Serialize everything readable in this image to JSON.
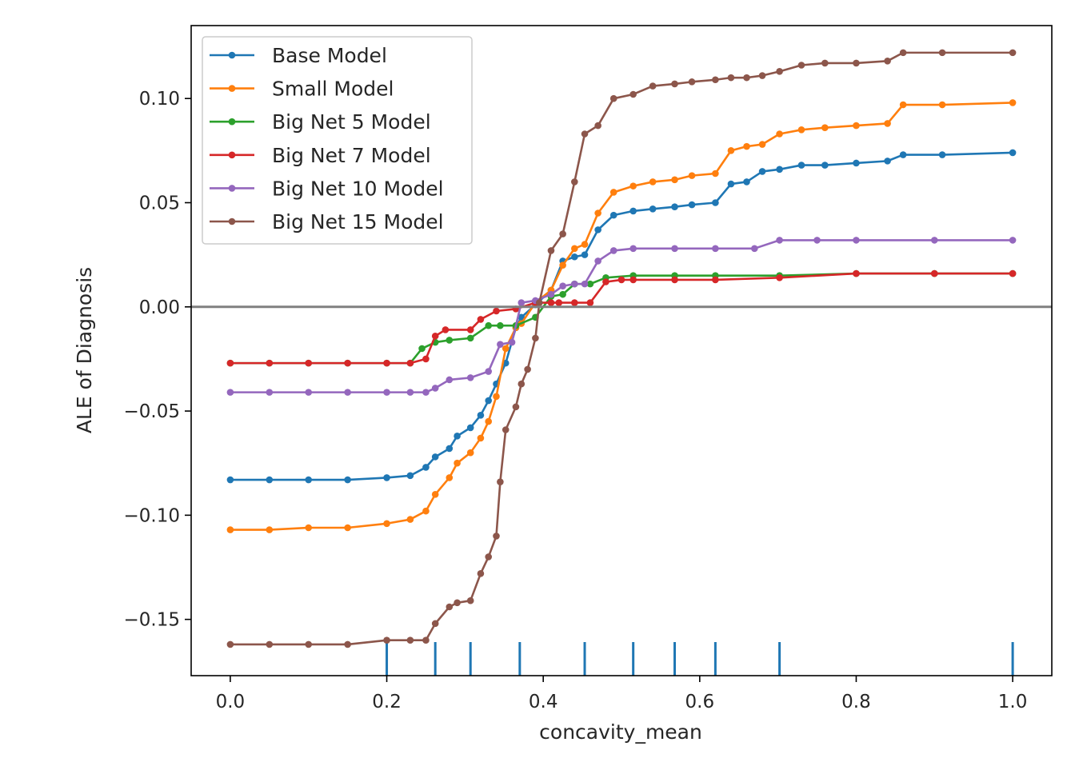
{
  "chart_data": {
    "type": "line",
    "title": "",
    "xlabel": "concavity_mean",
    "ylabel": "ALE of Diagnosis",
    "xlim": [
      -0.05,
      1.05
    ],
    "ylim": [
      -0.177,
      0.135
    ],
    "xticks": [
      0.0,
      0.2,
      0.4,
      0.6,
      0.8,
      1.0
    ],
    "xtick_labels": [
      "0.0",
      "0.2",
      "0.4",
      "0.6",
      "0.8",
      "1.0"
    ],
    "yticks": [
      -0.15,
      -0.1,
      -0.05,
      0.0,
      0.05,
      0.1
    ],
    "ytick_labels": [
      "−0.15",
      "−0.10",
      "−0.05",
      "0.00",
      "0.05",
      "0.10"
    ],
    "grid": false,
    "legend_position": "top-left",
    "reference_line": {
      "y": 0,
      "color": "#808080"
    },
    "rug": {
      "color": "#1f77b4",
      "x": [
        0.2,
        0.262,
        0.307,
        0.37,
        0.453,
        0.515,
        0.568,
        0.62,
        0.702,
        1.0
      ]
    },
    "series": [
      {
        "name": "Base Model",
        "color": "#1f77b4",
        "x": [
          0.0,
          0.05,
          0.1,
          0.15,
          0.2,
          0.23,
          0.25,
          0.262,
          0.28,
          0.29,
          0.307,
          0.32,
          0.33,
          0.34,
          0.352,
          0.365,
          0.372,
          0.39,
          0.41,
          0.425,
          0.44,
          0.453,
          0.47,
          0.49,
          0.515,
          0.54,
          0.568,
          0.59,
          0.62,
          0.64,
          0.66,
          0.68,
          0.702,
          0.73,
          0.76,
          0.8,
          0.84,
          0.86,
          0.91,
          1.0
        ],
        "y": [
          -0.083,
          -0.083,
          -0.083,
          -0.083,
          -0.082,
          -0.081,
          -0.077,
          -0.072,
          -0.068,
          -0.062,
          -0.058,
          -0.052,
          -0.045,
          -0.037,
          -0.027,
          -0.01,
          -0.005,
          0.001,
          0.008,
          0.022,
          0.024,
          0.025,
          0.037,
          0.044,
          0.046,
          0.047,
          0.048,
          0.049,
          0.05,
          0.059,
          0.06,
          0.065,
          0.066,
          0.068,
          0.068,
          0.069,
          0.07,
          0.073,
          0.073,
          0.074
        ]
      },
      {
        "name": "Small Model",
        "color": "#ff7f0e",
        "x": [
          0.0,
          0.05,
          0.1,
          0.15,
          0.2,
          0.23,
          0.25,
          0.262,
          0.28,
          0.29,
          0.307,
          0.32,
          0.33,
          0.34,
          0.352,
          0.365,
          0.372,
          0.39,
          0.41,
          0.425,
          0.44,
          0.453,
          0.47,
          0.49,
          0.515,
          0.54,
          0.568,
          0.59,
          0.62,
          0.64,
          0.66,
          0.68,
          0.702,
          0.73,
          0.76,
          0.8,
          0.84,
          0.86,
          0.91,
          1.0
        ],
        "y": [
          -0.107,
          -0.107,
          -0.106,
          -0.106,
          -0.104,
          -0.102,
          -0.098,
          -0.09,
          -0.082,
          -0.075,
          -0.07,
          -0.063,
          -0.055,
          -0.043,
          -0.02,
          -0.01,
          -0.008,
          0.002,
          0.008,
          0.02,
          0.028,
          0.03,
          0.045,
          0.055,
          0.058,
          0.06,
          0.061,
          0.063,
          0.064,
          0.075,
          0.077,
          0.078,
          0.083,
          0.085,
          0.086,
          0.087,
          0.088,
          0.097,
          0.097,
          0.098
        ]
      },
      {
        "name": "Big Net 5 Model",
        "color": "#2ca02c",
        "x": [
          0.0,
          0.05,
          0.1,
          0.15,
          0.2,
          0.23,
          0.245,
          0.262,
          0.28,
          0.307,
          0.33,
          0.345,
          0.365,
          0.39,
          0.41,
          0.425,
          0.44,
          0.46,
          0.48,
          0.515,
          0.568,
          0.62,
          0.702,
          0.8,
          0.9,
          1.0
        ],
        "y": [
          -0.027,
          -0.027,
          -0.027,
          -0.027,
          -0.027,
          -0.027,
          -0.02,
          -0.017,
          -0.016,
          -0.015,
          -0.009,
          -0.009,
          -0.009,
          -0.005,
          0.005,
          0.006,
          0.011,
          0.011,
          0.014,
          0.015,
          0.015,
          0.015,
          0.015,
          0.016,
          0.016,
          0.016
        ]
      },
      {
        "name": "Big Net 7 Model",
        "color": "#d62728",
        "x": [
          0.0,
          0.05,
          0.1,
          0.15,
          0.2,
          0.23,
          0.25,
          0.262,
          0.275,
          0.307,
          0.32,
          0.34,
          0.365,
          0.39,
          0.41,
          0.42,
          0.44,
          0.46,
          0.48,
          0.5,
          0.515,
          0.568,
          0.62,
          0.702,
          0.8,
          0.9,
          1.0
        ],
        "y": [
          -0.027,
          -0.027,
          -0.027,
          -0.027,
          -0.027,
          -0.027,
          -0.025,
          -0.014,
          -0.011,
          -0.011,
          -0.006,
          -0.002,
          -0.001,
          0.002,
          0.002,
          0.002,
          0.002,
          0.002,
          0.012,
          0.013,
          0.013,
          0.013,
          0.013,
          0.014,
          0.016,
          0.016,
          0.016
        ]
      },
      {
        "name": "Big Net 10 Model",
        "color": "#9467bd",
        "x": [
          0.0,
          0.05,
          0.1,
          0.15,
          0.2,
          0.23,
          0.25,
          0.262,
          0.28,
          0.307,
          0.33,
          0.345,
          0.36,
          0.372,
          0.39,
          0.41,
          0.425,
          0.44,
          0.453,
          0.47,
          0.49,
          0.515,
          0.568,
          0.62,
          0.67,
          0.702,
          0.75,
          0.8,
          0.9,
          1.0
        ],
        "y": [
          -0.041,
          -0.041,
          -0.041,
          -0.041,
          -0.041,
          -0.041,
          -0.041,
          -0.039,
          -0.035,
          -0.034,
          -0.031,
          -0.018,
          -0.017,
          0.002,
          0.003,
          0.006,
          0.01,
          0.011,
          0.011,
          0.022,
          0.027,
          0.028,
          0.028,
          0.028,
          0.028,
          0.032,
          0.032,
          0.032,
          0.032,
          0.032
        ]
      },
      {
        "name": "Big Net 15 Model",
        "color": "#8c564b",
        "x": [
          0.0,
          0.05,
          0.1,
          0.15,
          0.2,
          0.23,
          0.25,
          0.262,
          0.28,
          0.29,
          0.307,
          0.32,
          0.33,
          0.34,
          0.345,
          0.352,
          0.365,
          0.372,
          0.38,
          0.39,
          0.395,
          0.41,
          0.425,
          0.44,
          0.453,
          0.47,
          0.49,
          0.515,
          0.54,
          0.568,
          0.59,
          0.62,
          0.64,
          0.66,
          0.68,
          0.702,
          0.73,
          0.76,
          0.8,
          0.84,
          0.86,
          0.91,
          1.0
        ],
        "y": [
          -0.162,
          -0.162,
          -0.162,
          -0.162,
          -0.16,
          -0.16,
          -0.16,
          -0.152,
          -0.144,
          -0.142,
          -0.141,
          -0.128,
          -0.12,
          -0.11,
          -0.084,
          -0.059,
          -0.048,
          -0.037,
          -0.03,
          -0.015,
          0.002,
          0.027,
          0.035,
          0.06,
          0.083,
          0.087,
          0.1,
          0.102,
          0.106,
          0.107,
          0.108,
          0.109,
          0.11,
          0.11,
          0.111,
          0.113,
          0.116,
          0.117,
          0.117,
          0.118,
          0.122,
          0.122,
          0.122
        ]
      }
    ]
  }
}
